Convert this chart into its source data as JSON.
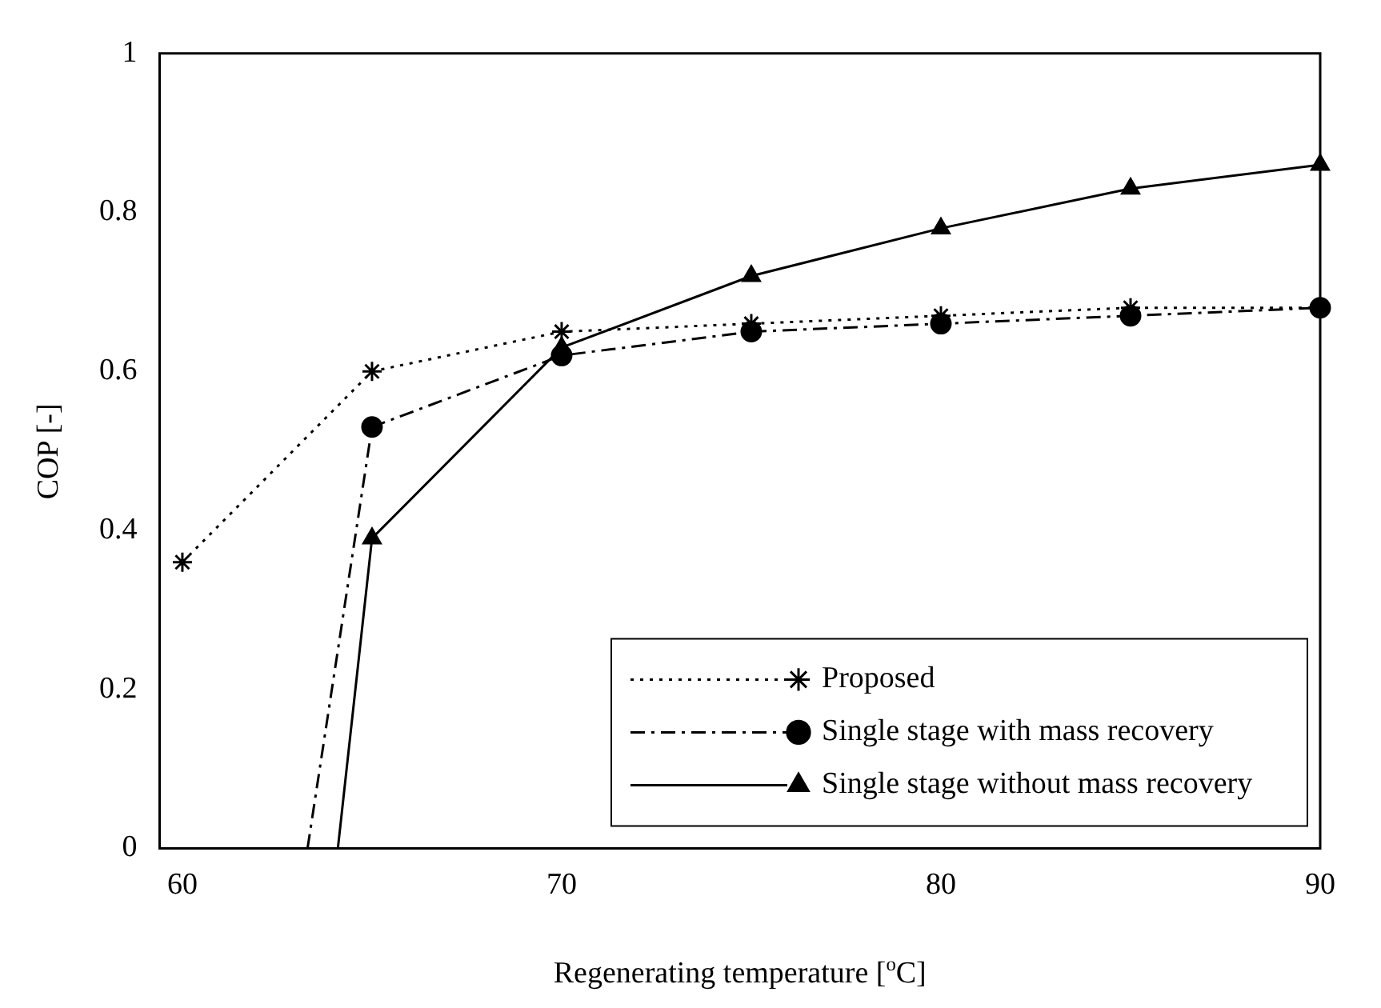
{
  "chart_data": {
    "type": "line",
    "xlabel": "Regenerating temperature [$^{o}$C]",
    "ylabel": "COP [-]",
    "xlim": [
      59.4,
      90
    ],
    "xticks": [
      60,
      70,
      80,
      90
    ],
    "ylim": [
      0,
      1
    ],
    "yticks": [
      0,
      0.2,
      0.4,
      0.6,
      0.8,
      1
    ],
    "grid": false,
    "legend": "bottom right",
    "series": [
      {
        "name": "Proposed",
        "color": "#000000",
        "line_style": "dotted",
        "marker": "cross",
        "x": [
          60,
          65,
          70,
          75,
          80,
          85,
          90
        ],
        "values": [
          0.36,
          0.6,
          0.65,
          0.66,
          0.67,
          0.68,
          0.68
        ]
      },
      {
        "name": "Single stage with mass recovery",
        "color": "#000000",
        "line_style": "dashdot",
        "marker": [
          "none",
          "circle",
          "circle",
          "circle",
          "circle",
          "circle",
          "circle"
        ],
        "x": [
          63.3,
          65,
          70,
          75,
          80,
          85,
          90
        ],
        "values": [
          0,
          0.53,
          0.62,
          0.65,
          0.66,
          0.67,
          0.68
        ]
      },
      {
        "name": "Single stage without mass recovery",
        "color": "#000000",
        "line_style": "solid",
        "marker": [
          "none",
          "triangle",
          "triangle",
          "triangle",
          "triangle",
          "triangle",
          "triangle"
        ],
        "x": [
          64.1,
          65,
          70,
          75,
          80,
          85,
          90
        ],
        "values": [
          0,
          0.39,
          0.63,
          0.72,
          0.78,
          0.83,
          0.86
        ]
      }
    ]
  }
}
